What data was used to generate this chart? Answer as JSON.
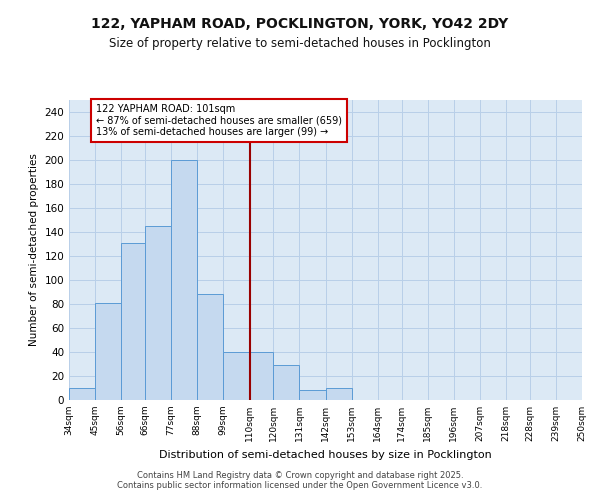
{
  "title": "122, YAPHAM ROAD, POCKLINGTON, YORK, YO42 2DY",
  "subtitle": "Size of property relative to semi-detached houses in Pocklington",
  "xlabel": "Distribution of semi-detached houses by size in Pocklington",
  "ylabel": "Number of semi-detached properties",
  "bin_labels": [
    "34sqm",
    "45sqm",
    "56sqm",
    "66sqm",
    "77sqm",
    "88sqm",
    "99sqm",
    "110sqm",
    "120sqm",
    "131sqm",
    "142sqm",
    "153sqm",
    "164sqm",
    "174sqm",
    "185sqm",
    "196sqm",
    "207sqm",
    "218sqm",
    "228sqm",
    "239sqm",
    "250sqm"
  ],
  "bar_heights": [
    10,
    81,
    131,
    145,
    200,
    88,
    40,
    40,
    29,
    8,
    10,
    0,
    0,
    0,
    0,
    0,
    0,
    0,
    0,
    0,
    0
  ],
  "bar_color": "#c5d9ef",
  "bar_edge_color": "#5b9bd5",
  "bg_color": "#dce9f5",
  "grid_color": "#b8cfe8",
  "vline_color": "#990000",
  "annotation_text": "122 YAPHAM ROAD: 101sqm\n← 87% of semi-detached houses are smaller (659)\n13% of semi-detached houses are larger (99) →",
  "annotation_box_color": "#ffffff",
  "annotation_box_edge": "#cc0000",
  "ylim": [
    0,
    250
  ],
  "yticks": [
    0,
    20,
    40,
    60,
    80,
    100,
    120,
    140,
    160,
    180,
    200,
    220,
    240
  ],
  "footer_text": "Contains HM Land Registry data © Crown copyright and database right 2025.\nContains public sector information licensed under the Open Government Licence v3.0.",
  "bin_edges": [
    34,
    45,
    56,
    66,
    77,
    88,
    99,
    110,
    120,
    131,
    142,
    153,
    164,
    174,
    185,
    196,
    207,
    218,
    228,
    239,
    250
  ],
  "vline_bin_index": 7
}
